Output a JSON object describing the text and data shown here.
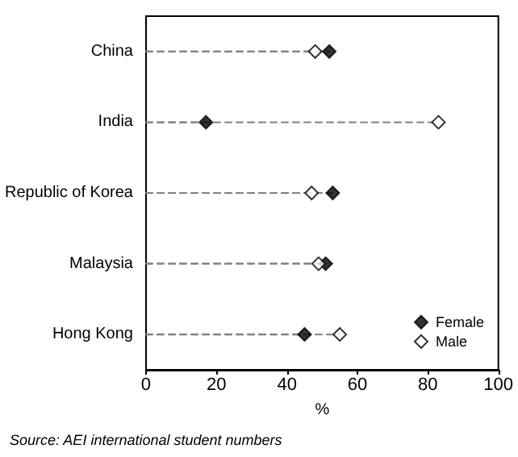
{
  "chart_data": {
    "type": "lollipop",
    "orientation": "horizontal",
    "categories": [
      "China",
      "India",
      "Republic of Korea",
      "Malaysia",
      "Hong Kong"
    ],
    "series": [
      {
        "name": "Female",
        "color": "#000000",
        "values": [
          52,
          17,
          53,
          51,
          45
        ]
      },
      {
        "name": "Male",
        "color": "#ffffff",
        "values": [
          48,
          83,
          47,
          49,
          55
        ]
      }
    ],
    "xlim": [
      0,
      100
    ],
    "xticks": [
      0,
      20,
      40,
      60,
      80,
      100
    ],
    "xlabel": "%",
    "marker": "diamond",
    "line_style": "dashed",
    "legend": "bottom right",
    "grid": false,
    "annotations": [
      "Source: AEI international student numbers"
    ]
  }
}
